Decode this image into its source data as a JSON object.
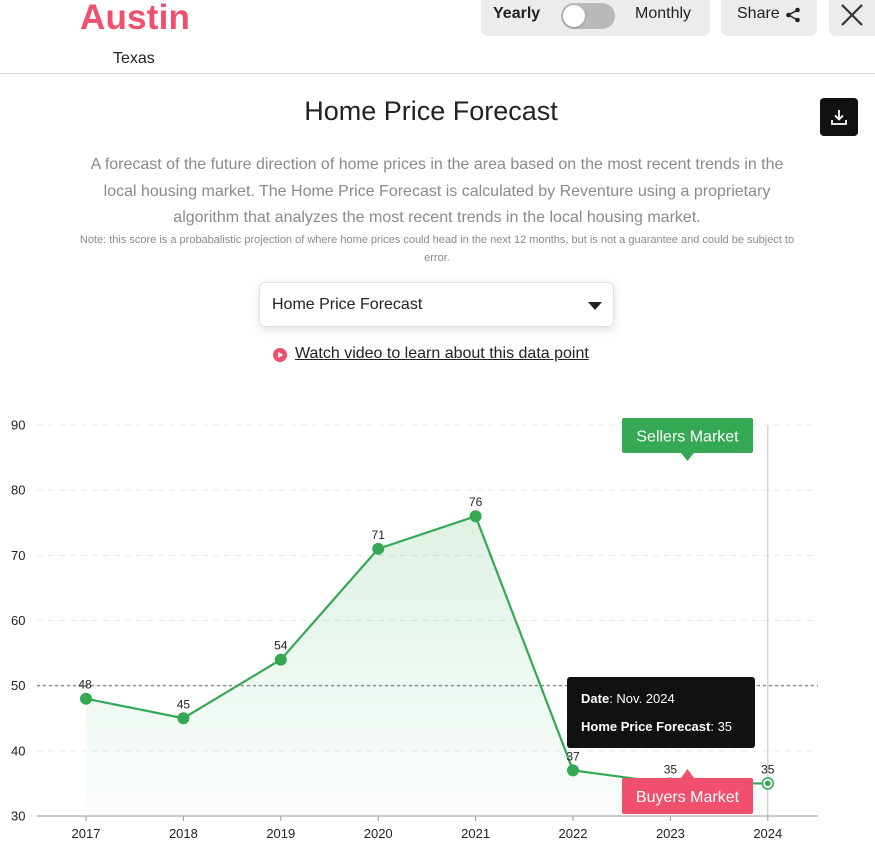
{
  "header": {
    "city": "Austin",
    "state": "Texas",
    "toggle": {
      "yearly_label": "Yearly",
      "monthly_label": "Monthly",
      "selected": "Yearly"
    },
    "share_label": "Share",
    "icons": {
      "share": "share-icon",
      "close": "close-icon"
    }
  },
  "section": {
    "title": "Home Price Forecast",
    "download_icon": "download-icon",
    "description": "A forecast of the future direction of home prices in the area based on the most recent trends in the local housing market. The Home Price Forecast is calculated by Reventure using a proprietary algorithm that analyzes the most recent trends in the local housing market.",
    "note": "Note: this score is a probabalistic projection of where home prices could head in the next 12 months, but is not a guarantee and could be subject to error.",
    "select": {
      "value": "Home Price Forecast"
    },
    "video_link": "Watch video to learn about this data point"
  },
  "colors": {
    "brand": "#f0506e",
    "line": "#34a853",
    "sellers": "#34a853",
    "buyers": "#f0506e",
    "tooltip_bg": "#111111"
  },
  "chart_data": {
    "type": "area",
    "x": [
      "2017",
      "2018",
      "2019",
      "2020",
      "2021",
      "2022",
      "2023",
      "2024"
    ],
    "series": [
      {
        "values": [
          48,
          45,
          54,
          71,
          76,
          37,
          35,
          35
        ]
      }
    ],
    "labels": [
      "48",
      "45",
      "54",
      "71",
      "76",
      "37",
      "35",
      "35"
    ],
    "yticks": [
      30,
      40,
      50,
      60,
      70,
      80,
      90
    ],
    "ylim": [
      30,
      90
    ],
    "grid": true,
    "reference_line": 50,
    "sellers_label": "Sellers Market",
    "buyers_label": "Buyers Market",
    "tooltip": {
      "date_key": "Date",
      "date_value": "Nov. 2024",
      "metric_key": "Home Price Forecast",
      "metric_value": "35"
    }
  }
}
